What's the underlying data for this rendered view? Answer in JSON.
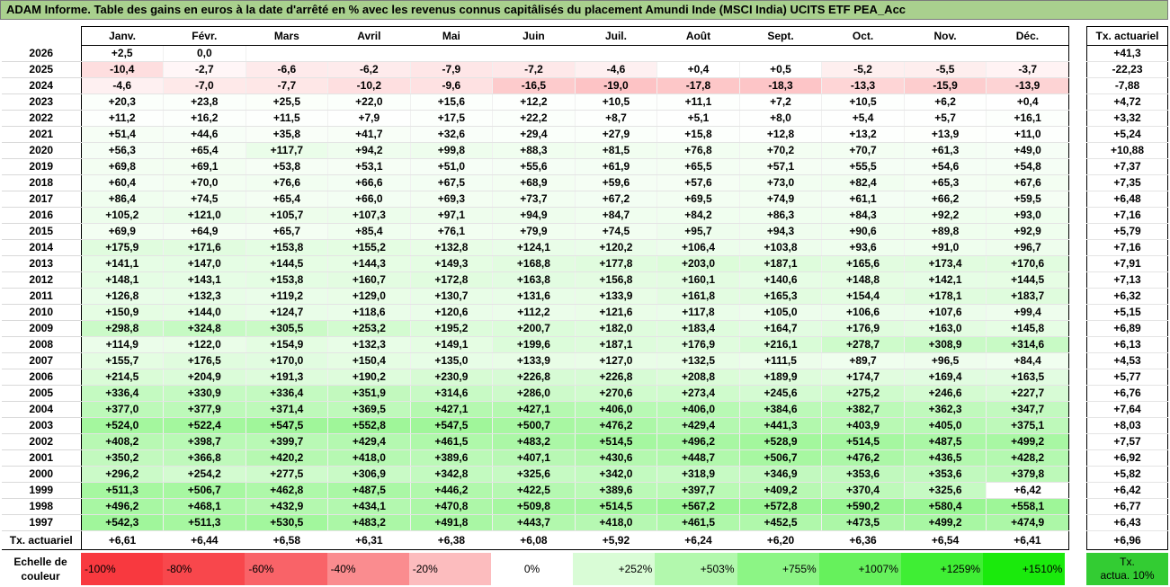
{
  "title": "ADAM Informe. Table des gains en euros à la date d'arrêté en % avec les revenus connus capitâlisés du placement Amundi Inde (MSCI India) UCITS ETF PEA_Acc",
  "months": [
    "Janv.",
    "Févr.",
    "Mars",
    "Avril",
    "Mai",
    "Juin",
    "Juil.",
    "Août",
    "Sept.",
    "Oct.",
    "Nov.",
    "Déc."
  ],
  "rate_header": "Tx. actuariel",
  "rows": [
    {
      "year": "2026",
      "vals": [
        "+2,5",
        "0,0",
        "",
        "",
        "",
        "",
        "",
        "",
        "",
        "",
        "",
        ""
      ],
      "rate": "+41,3"
    },
    {
      "year": "2025",
      "vals": [
        "-10,4",
        "-2,7",
        "-6,6",
        "-6,2",
        "-7,9",
        "-7,2",
        "-4,6",
        "+0,4",
        "+0,5",
        "-5,2",
        "-5,5",
        "-3,7"
      ],
      "rate": "-22,23"
    },
    {
      "year": "2024",
      "vals": [
        "-4,6",
        "-7,0",
        "-7,7",
        "-10,2",
        "-9,6",
        "-16,5",
        "-19,0",
        "-17,8",
        "-18,3",
        "-13,3",
        "-15,9",
        "-13,9"
      ],
      "rate": "-7,88"
    },
    {
      "year": "2023",
      "vals": [
        "+20,3",
        "+23,8",
        "+25,5",
        "+22,0",
        "+15,6",
        "+12,2",
        "+10,5",
        "+11,1",
        "+7,2",
        "+10,5",
        "+6,2",
        "+0,4"
      ],
      "rate": "+4,72"
    },
    {
      "year": "2022",
      "vals": [
        "+11,2",
        "+16,2",
        "+11,5",
        "+7,9",
        "+17,5",
        "+22,2",
        "+8,7",
        "+5,1",
        "+8,0",
        "+5,4",
        "+5,7",
        "+16,1"
      ],
      "rate": "+3,32"
    },
    {
      "year": "2021",
      "vals": [
        "+51,4",
        "+44,6",
        "+35,8",
        "+41,7",
        "+32,6",
        "+29,4",
        "+27,9",
        "+15,8",
        "+12,8",
        "+13,2",
        "+13,9",
        "+11,0"
      ],
      "rate": "+5,24"
    },
    {
      "year": "2020",
      "vals": [
        "+56,3",
        "+65,4",
        "+117,7",
        "+94,2",
        "+99,8",
        "+88,3",
        "+81,5",
        "+76,8",
        "+70,2",
        "+70,7",
        "+61,3",
        "+49,0"
      ],
      "rate": "+10,88"
    },
    {
      "year": "2019",
      "vals": [
        "+69,8",
        "+69,1",
        "+53,8",
        "+53,1",
        "+51,0",
        "+55,6",
        "+61,9",
        "+65,5",
        "+57,1",
        "+55,5",
        "+54,6",
        "+54,8"
      ],
      "rate": "+7,37"
    },
    {
      "year": "2018",
      "vals": [
        "+60,4",
        "+70,0",
        "+76,6",
        "+66,6",
        "+67,5",
        "+68,9",
        "+59,6",
        "+57,6",
        "+73,0",
        "+82,4",
        "+65,3",
        "+67,6"
      ],
      "rate": "+7,35"
    },
    {
      "year": "2017",
      "vals": [
        "+86,4",
        "+74,5",
        "+65,4",
        "+66,0",
        "+69,3",
        "+73,7",
        "+67,2",
        "+69,5",
        "+74,9",
        "+61,1",
        "+66,2",
        "+59,5"
      ],
      "rate": "+6,48"
    },
    {
      "year": "2016",
      "vals": [
        "+105,2",
        "+121,0",
        "+105,7",
        "+107,3",
        "+97,1",
        "+94,9",
        "+84,7",
        "+84,2",
        "+86,3",
        "+84,3",
        "+92,2",
        "+93,0"
      ],
      "rate": "+7,16"
    },
    {
      "year": "2015",
      "vals": [
        "+69,9",
        "+64,9",
        "+65,7",
        "+85,4",
        "+76,1",
        "+79,9",
        "+74,5",
        "+95,7",
        "+94,3",
        "+90,6",
        "+89,8",
        "+92,9"
      ],
      "rate": "+5,79"
    },
    {
      "year": "2014",
      "vals": [
        "+175,9",
        "+171,6",
        "+153,8",
        "+155,2",
        "+132,8",
        "+124,1",
        "+120,2",
        "+106,4",
        "+103,8",
        "+93,6",
        "+91,0",
        "+96,7"
      ],
      "rate": "+7,16"
    },
    {
      "year": "2013",
      "vals": [
        "+141,1",
        "+147,0",
        "+144,5",
        "+144,3",
        "+149,3",
        "+168,8",
        "+177,8",
        "+203,0",
        "+187,1",
        "+165,6",
        "+173,4",
        "+170,6"
      ],
      "rate": "+7,91"
    },
    {
      "year": "2012",
      "vals": [
        "+148,1",
        "+143,1",
        "+153,8",
        "+160,7",
        "+172,8",
        "+163,8",
        "+156,8",
        "+160,1",
        "+140,6",
        "+148,8",
        "+142,1",
        "+144,5"
      ],
      "rate": "+7,13"
    },
    {
      "year": "2011",
      "vals": [
        "+126,8",
        "+132,3",
        "+119,2",
        "+129,0",
        "+130,7",
        "+131,6",
        "+133,9",
        "+161,8",
        "+165,3",
        "+154,4",
        "+178,1",
        "+183,7"
      ],
      "rate": "+6,32"
    },
    {
      "year": "2010",
      "vals": [
        "+150,9",
        "+144,0",
        "+124,7",
        "+118,6",
        "+120,6",
        "+112,2",
        "+121,6",
        "+117,8",
        "+105,0",
        "+106,6",
        "+107,6",
        "+99,4"
      ],
      "rate": "+5,15"
    },
    {
      "year": "2009",
      "vals": [
        "+298,8",
        "+324,8",
        "+305,5",
        "+253,2",
        "+195,2",
        "+200,7",
        "+182,0",
        "+183,4",
        "+164,7",
        "+176,9",
        "+163,0",
        "+145,8"
      ],
      "rate": "+6,89"
    },
    {
      "year": "2008",
      "vals": [
        "+114,9",
        "+122,0",
        "+154,9",
        "+132,3",
        "+149,1",
        "+199,6",
        "+187,1",
        "+176,9",
        "+216,1",
        "+278,7",
        "+308,9",
        "+314,6"
      ],
      "rate": "+6,13"
    },
    {
      "year": "2007",
      "vals": [
        "+155,7",
        "+176,5",
        "+170,0",
        "+150,4",
        "+135,0",
        "+133,9",
        "+127,0",
        "+132,5",
        "+111,5",
        "+89,7",
        "+96,5",
        "+84,4"
      ],
      "rate": "+4,53"
    },
    {
      "year": "2006",
      "vals": [
        "+214,5",
        "+204,9",
        "+191,3",
        "+190,2",
        "+230,9",
        "+226,8",
        "+226,8",
        "+208,8",
        "+189,9",
        "+174,7",
        "+169,4",
        "+163,5"
      ],
      "rate": "+5,77"
    },
    {
      "year": "2005",
      "vals": [
        "+336,4",
        "+330,9",
        "+336,4",
        "+351,9",
        "+314,6",
        "+286,0",
        "+270,6",
        "+273,4",
        "+245,6",
        "+275,2",
        "+246,6",
        "+227,7"
      ],
      "rate": "+6,76"
    },
    {
      "year": "2004",
      "vals": [
        "+377,0",
        "+377,9",
        "+371,4",
        "+369,5",
        "+427,1",
        "+427,1",
        "+406,0",
        "+406,0",
        "+384,6",
        "+382,7",
        "+362,3",
        "+347,7"
      ],
      "rate": "+7,64"
    },
    {
      "year": "2003",
      "vals": [
        "+524,0",
        "+522,4",
        "+547,5",
        "+552,8",
        "+547,5",
        "+500,7",
        "+476,2",
        "+429,4",
        "+441,3",
        "+403,9",
        "+405,0",
        "+375,1"
      ],
      "rate": "+8,03"
    },
    {
      "year": "2002",
      "vals": [
        "+408,2",
        "+398,7",
        "+399,7",
        "+429,4",
        "+461,5",
        "+483,2",
        "+514,5",
        "+496,2",
        "+528,9",
        "+514,5",
        "+487,5",
        "+499,2"
      ],
      "rate": "+7,57"
    },
    {
      "year": "2001",
      "vals": [
        "+350,2",
        "+366,8",
        "+420,2",
        "+418,0",
        "+389,6",
        "+407,1",
        "+430,6",
        "+448,7",
        "+506,7",
        "+476,2",
        "+436,5",
        "+428,2"
      ],
      "rate": "+6,92"
    },
    {
      "year": "2000",
      "vals": [
        "+296,2",
        "+254,2",
        "+277,5",
        "+306,9",
        "+342,8",
        "+325,6",
        "+342,0",
        "+318,9",
        "+346,9",
        "+353,6",
        "+353,6",
        "+379,8"
      ],
      "rate": "+5,82"
    },
    {
      "year": "1999",
      "vals": [
        "+511,3",
        "+506,7",
        "+462,8",
        "+487,5",
        "+446,2",
        "+422,5",
        "+389,6",
        "+397,7",
        "+409,2",
        "+370,4",
        "+325,6",
        "+6,42"
      ],
      "rate": "+6,42"
    },
    {
      "year": "1998",
      "vals": [
        "+496,2",
        "+468,1",
        "+432,9",
        "+434,1",
        "+470,8",
        "+509,8",
        "+514,5",
        "+567,2",
        "+572,8",
        "+590,2",
        "+580,4",
        "+558,1"
      ],
      "rate": "+6,77"
    },
    {
      "year": "1997",
      "vals": [
        "+542,3",
        "+511,3",
        "+530,5",
        "+483,2",
        "+491,8",
        "+443,7",
        "+418,0",
        "+461,5",
        "+452,5",
        "+473,5",
        "+499,2",
        "+474,9"
      ],
      "rate": "+6,43"
    }
  ],
  "footer": {
    "label": "Tx. actuariel",
    "vals": [
      "+6,61",
      "+6,44",
      "+6,58",
      "+6,31",
      "+6,38",
      "+6,08",
      "+5,92",
      "+6,24",
      "+6,20",
      "+6,36",
      "+6,54",
      "+6,41"
    ],
    "rate": "+6,96"
  },
  "scale": {
    "label_line1": "Echelle de",
    "label_line2": "couleur",
    "steps": [
      {
        "label": "-100%",
        "color": "#f8393f",
        "kind": "neg"
      },
      {
        "label": "-80%",
        "color": "#f8474c",
        "kind": "neg"
      },
      {
        "label": "-60%",
        "color": "#f96368",
        "kind": "neg"
      },
      {
        "label": "-40%",
        "color": "#fa8c8f",
        "kind": "neg"
      },
      {
        "label": "-20%",
        "color": "#fcbcbe",
        "kind": "neg"
      },
      {
        "label": "0%",
        "color": "#ffffff",
        "kind": "zero"
      },
      {
        "label": "+252%",
        "color": "#d9fcd6",
        "kind": "pos"
      },
      {
        "label": "+503%",
        "color": "#b2f8ad",
        "kind": "pos"
      },
      {
        "label": "+755%",
        "color": "#8cf585",
        "kind": "pos"
      },
      {
        "label": "+1007%",
        "color": "#66f15c",
        "kind": "pos"
      },
      {
        "label": "+1259%",
        "color": "#3fee34",
        "kind": "pos"
      },
      {
        "label": "+1510%",
        "color": "#1aea0c",
        "kind": "pos"
      }
    ]
  },
  "rate_legend": {
    "line1": "Tx.",
    "line2": "actua. 10%",
    "color": "#33cc33"
  }
}
